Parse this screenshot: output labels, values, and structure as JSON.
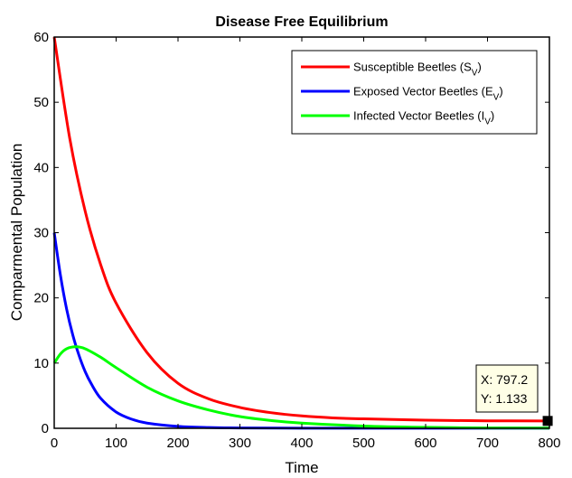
{
  "chart_data": {
    "type": "line",
    "title": "Disease Free Equilibrium",
    "xlabel": "Time",
    "ylabel": "Comparmental Population",
    "xlim": [
      0,
      800
    ],
    "ylim": [
      0,
      60
    ],
    "xticks": [
      0,
      100,
      200,
      300,
      400,
      500,
      600,
      700,
      800
    ],
    "yticks": [
      0,
      10,
      20,
      30,
      40,
      50,
      60
    ],
    "grid": false,
    "legend_position": "top-right",
    "series": [
      {
        "key": "S",
        "base": "Susceptible Beetles (S",
        "sub": "V",
        "tail": ")",
        "color": "#ff0000",
        "x": [
          0,
          25,
          50,
          75,
          100,
          150,
          200,
          250,
          300,
          350,
          400,
          450,
          500,
          600,
          700,
          800
        ],
        "y": [
          60,
          44.5,
          33.3,
          25.1,
          19.2,
          11.6,
          6.9,
          4.5,
          3.2,
          2.4,
          1.9,
          1.6,
          1.45,
          1.25,
          1.15,
          1.13
        ]
      },
      {
        "key": "E",
        "base": "Exposed Vector Beetles (E",
        "sub": "V",
        "tail": ")",
        "color": "#0000ff",
        "x": [
          0,
          10,
          20,
          30,
          40,
          50,
          60,
          75,
          100,
          125,
          150,
          200,
          250,
          300,
          400,
          500,
          600,
          700,
          800
        ],
        "y": [
          30,
          23.5,
          18.3,
          14.3,
          11.2,
          8.7,
          6.8,
          4.6,
          2.5,
          1.4,
          0.8,
          0.3,
          0.12,
          0.05,
          0.02,
          0.01,
          0.01,
          0.01,
          0.01
        ]
      },
      {
        "key": "I",
        "base": "Infected Vector Beetles (I",
        "sub": "V",
        "tail": ")",
        "color": "#00ff00",
        "x": [
          0,
          10,
          20,
          35,
          50,
          75,
          100,
          150,
          200,
          250,
          300,
          350,
          400,
          500,
          600,
          700,
          800
        ],
        "y": [
          10,
          11.4,
          12.2,
          12.5,
          12.2,
          10.9,
          9.3,
          6.3,
          4.2,
          2.8,
          1.8,
          1.2,
          0.8,
          0.35,
          0.15,
          0.06,
          0.03
        ]
      }
    ],
    "datatip": {
      "x": 797.2,
      "y": 1.133,
      "x_text": "X: 797.2",
      "y_text": "Y: 1.133"
    }
  }
}
